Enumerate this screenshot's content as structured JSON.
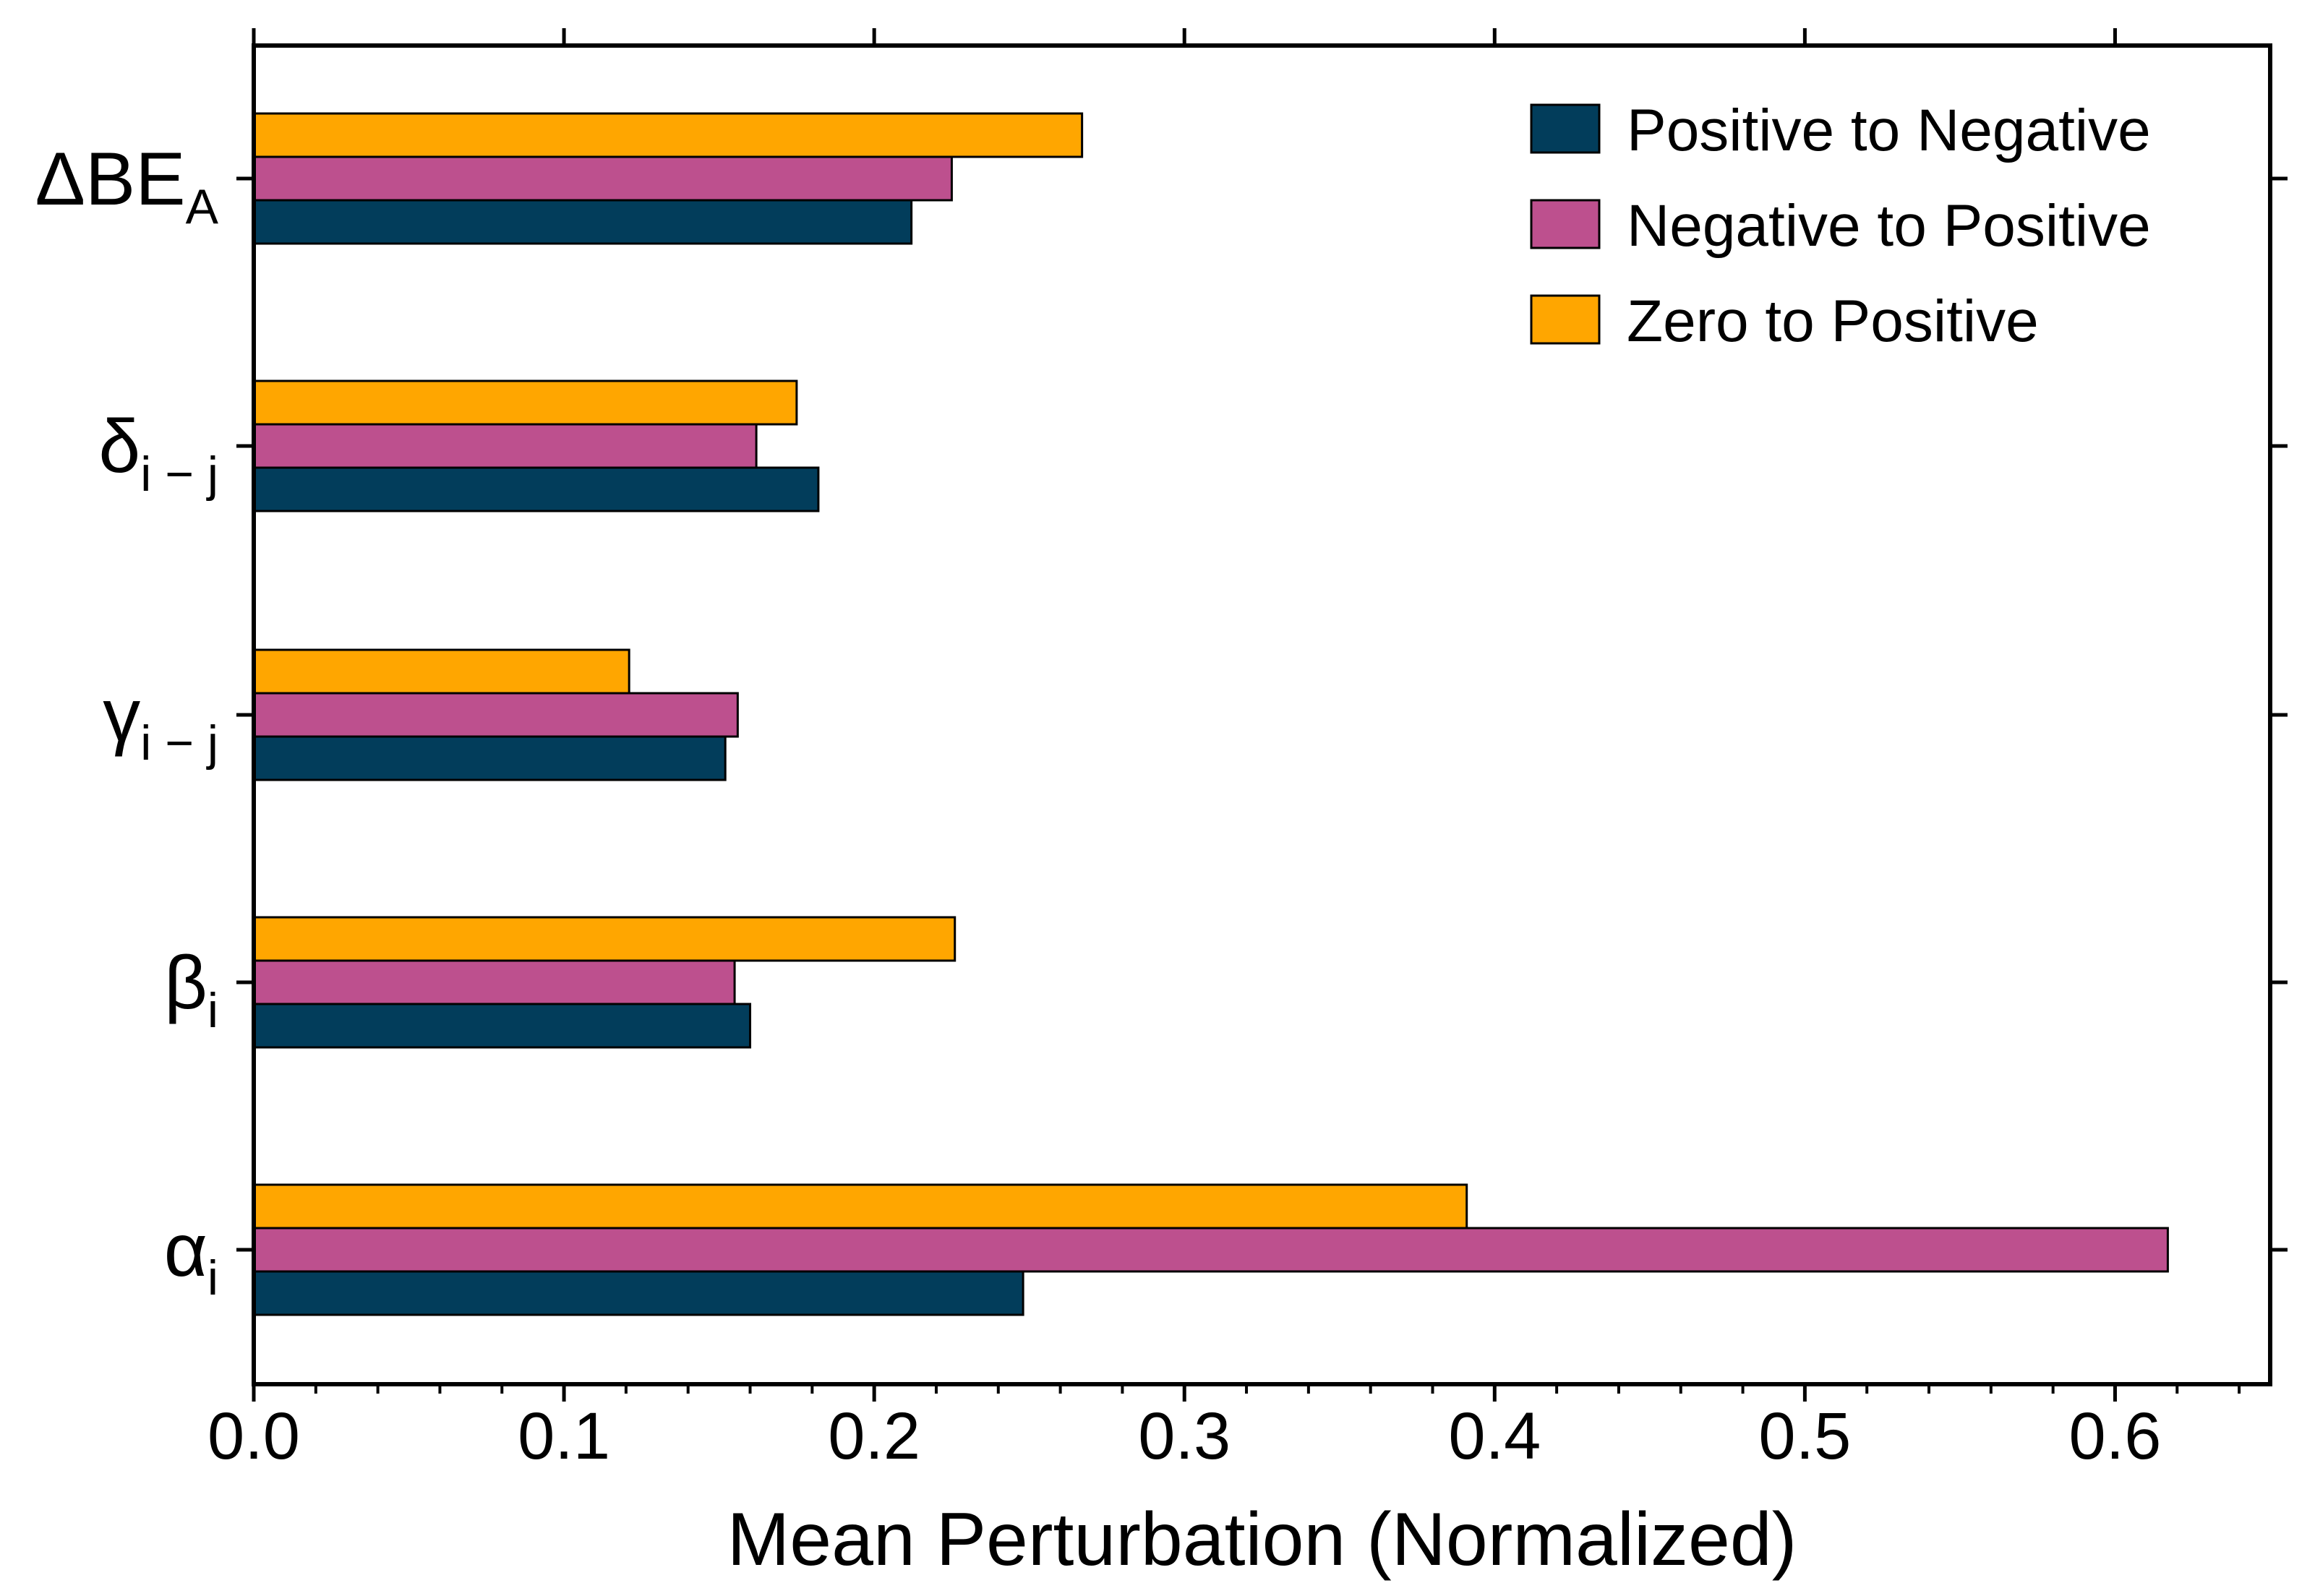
{
  "chart_data": {
    "type": "bar",
    "orientation": "horizontal",
    "xlabel": "Mean Perturbation (Normalized)",
    "ylabel": "",
    "xlim": [
      0,
      0.65
    ],
    "x_ticks": [
      "0.0",
      "0.1",
      "0.2",
      "0.3",
      "0.4",
      "0.5",
      "0.6"
    ],
    "x_tick_values": [
      0,
      0.1,
      0.2,
      0.3,
      0.4,
      0.5,
      0.6
    ],
    "categories": [
      {
        "main": "ΔBE",
        "sub": "A"
      },
      {
        "main": "δ",
        "sub": "i − j"
      },
      {
        "main": "γ",
        "sub": "i − j"
      },
      {
        "main": "β",
        "sub": "i"
      },
      {
        "main": "α",
        "sub": "i"
      }
    ],
    "series": [
      {
        "name": "Positive to Negative",
        "color": "#023d5b",
        "values": [
          0.212,
          0.182,
          0.152,
          0.16,
          0.248
        ]
      },
      {
        "name": "Negative to Positive",
        "color": "#bd508e",
        "values": [
          0.225,
          0.162,
          0.156,
          0.155,
          0.617
        ]
      },
      {
        "name": "Zero to Positive",
        "color": "#ffa600",
        "values": [
          0.267,
          0.175,
          0.121,
          0.226,
          0.391
        ]
      }
    ],
    "legend_position": "top-right",
    "grid": false
  }
}
